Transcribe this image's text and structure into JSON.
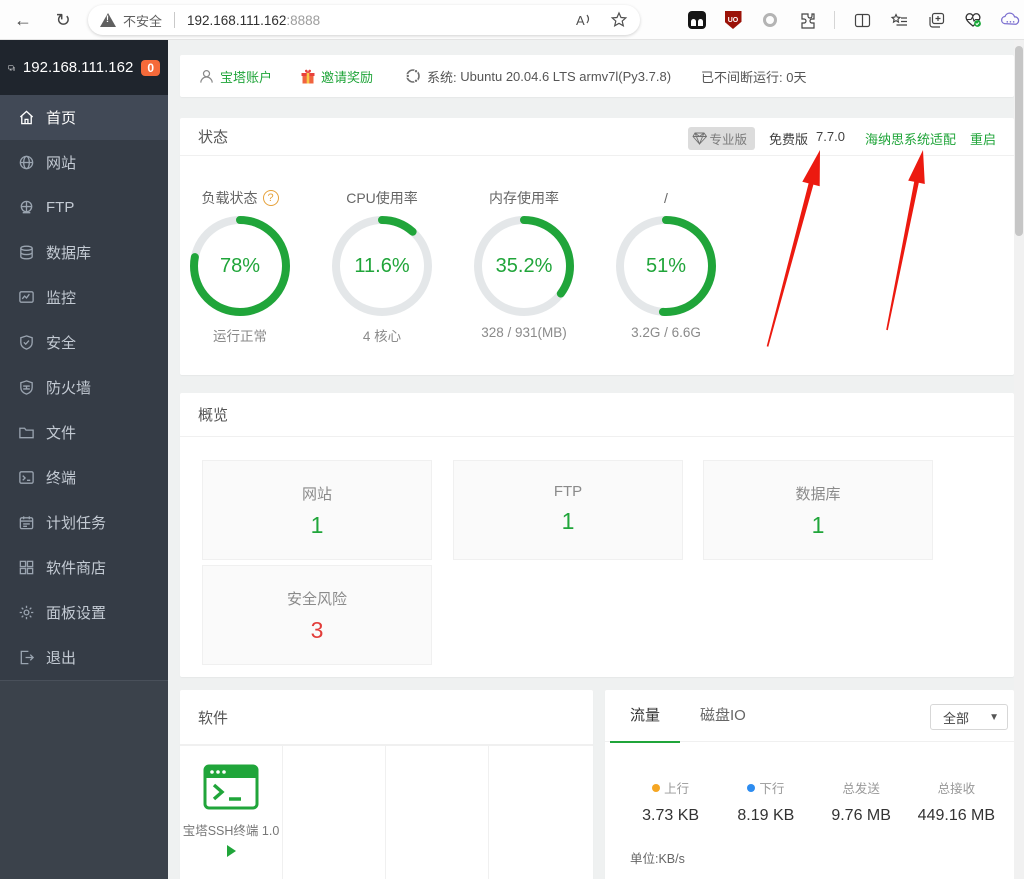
{
  "browser": {
    "security_label": "不安全",
    "url_host": "192.168.111.162",
    "url_port": ":8888"
  },
  "sidebar": {
    "server_ip": "192.168.111.162",
    "badge_count": "0",
    "items": [
      {
        "label": "首页",
        "icon": "home-icon",
        "active": true
      },
      {
        "label": "网站",
        "icon": "globe-icon",
        "active": false
      },
      {
        "label": "FTP",
        "icon": "ftp-icon",
        "active": false
      },
      {
        "label": "数据库",
        "icon": "database-icon",
        "active": false
      },
      {
        "label": "监控",
        "icon": "monitor-icon",
        "active": false
      },
      {
        "label": "安全",
        "icon": "shield-check-icon",
        "active": false
      },
      {
        "label": "防火墙",
        "icon": "firewall-icon",
        "active": false
      },
      {
        "label": "文件",
        "icon": "folder-icon",
        "active": false
      },
      {
        "label": "终端",
        "icon": "terminal-icon",
        "active": false
      },
      {
        "label": "计划任务",
        "icon": "calendar-icon",
        "active": false
      },
      {
        "label": "软件商店",
        "icon": "grid-icon",
        "active": false
      },
      {
        "label": "面板设置",
        "icon": "gear-icon",
        "active": false
      },
      {
        "label": "退出",
        "icon": "logout-icon",
        "active": false
      }
    ]
  },
  "topbar": {
    "account_label": "宝塔账户",
    "invite_label": "邀请奖励",
    "system_label": "系统:",
    "system_value": "Ubuntu 20.04.6 LTS armv7l(Py3.7.8)",
    "uptime_text": "已不间断运行: 0天"
  },
  "status": {
    "title": "状态",
    "pro_badge": "专业版",
    "edition": "免费版",
    "version": "7.7.0",
    "adapt_link": "海纳思系统适配",
    "restart_link": "重启",
    "gauges": [
      {
        "label": "负载状态",
        "has_help": true,
        "percent": 78,
        "display": "78%",
        "sub": "运行正常"
      },
      {
        "label": "CPU使用率",
        "has_help": false,
        "percent": 11.6,
        "display": "11.6%",
        "sub": "4 核心"
      },
      {
        "label": "内存使用率",
        "has_help": false,
        "percent": 35.2,
        "display": "35.2%",
        "sub": "328 / 931(MB)"
      },
      {
        "label": "/",
        "has_help": false,
        "percent": 51,
        "display": "51%",
        "sub": "3.2G / 6.6G"
      }
    ]
  },
  "overview": {
    "title": "概览",
    "cards": [
      {
        "label": "网站",
        "value": "1",
        "tone": "green"
      },
      {
        "label": "FTP",
        "value": "1",
        "tone": "green"
      },
      {
        "label": "数据库",
        "value": "1",
        "tone": "green"
      },
      {
        "label": "安全风险",
        "value": "3",
        "tone": "red"
      }
    ]
  },
  "software": {
    "title": "软件",
    "apps": [
      {
        "name": "宝塔SSH终端 1.0"
      }
    ]
  },
  "traffic": {
    "tab_traffic": "流量",
    "tab_disk": "磁盘IO",
    "filter_value": "全部",
    "stats": [
      {
        "label": "上行",
        "value": "3.73 KB",
        "dot": "#f5a623"
      },
      {
        "label": "下行",
        "value": "8.19 KB",
        "dot": "#2d8cf0"
      },
      {
        "label": "总发送",
        "value": "9.76 MB",
        "dot": ""
      },
      {
        "label": "总接收",
        "value": "449.16 MB",
        "dot": ""
      }
    ],
    "unit": "单位:KB/s"
  },
  "colors": {
    "accent_green": "#20a53a",
    "risk_red": "#e23c39",
    "badge_orange": "#f56a3a",
    "arrow_red": "#ec1a10",
    "up_dot": "#f5a623",
    "down_dot": "#2d8cf0"
  }
}
